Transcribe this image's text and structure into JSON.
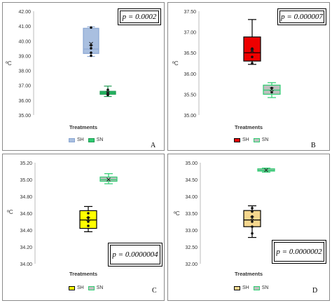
{
  "chart_data": [
    {
      "type": "box",
      "panel_letter": "A",
      "xlabel": "Treatments",
      "ylabel": "ºC",
      "ylim": [
        35.0,
        42.0
      ],
      "yticks": [
        "42.00",
        "41.00",
        "40.00",
        "39.00",
        "38.00",
        "37.00",
        "36.00",
        "35.00"
      ],
      "p_value": "p = 0.0002",
      "series": [
        {
          "name": "SH",
          "fill": "#a9bfe0",
          "stroke": "#8aa6d2",
          "min": 38.95,
          "q1": 39.15,
          "median": 39.45,
          "q3": 40.85,
          "max": 40.95,
          "mean": 39.8,
          "points": [
            39.0,
            39.2,
            39.5,
            39.7,
            40.9
          ]
        },
        {
          "name": "SN",
          "fill": "#2ecc71",
          "stroke": "#1f9a52",
          "min": 36.25,
          "q1": 36.4,
          "median": 36.5,
          "q3": 36.6,
          "max": 36.95,
          "mean": 36.5,
          "points": [
            36.35,
            36.5,
            36.7
          ]
        }
      ]
    },
    {
      "type": "box",
      "panel_letter": "B",
      "xlabel": "Treatments",
      "ylabel": "ºC",
      "ylim": [
        35.0,
        37.5
      ],
      "yticks": [
        "37.50",
        "37.00",
        "36.50",
        "36.00",
        "35.50",
        "35.00"
      ],
      "p_value": "p = 0.000007",
      "series": [
        {
          "name": "SH",
          "fill": "#ee0000",
          "stroke": "#000000",
          "min": 36.22,
          "q1": 36.3,
          "median": 36.5,
          "q3": 36.88,
          "max": 37.3,
          "mean": 36.55,
          "points": [
            36.25,
            36.4,
            36.55,
            36.6
          ]
        },
        {
          "name": "SN",
          "fill": "#bfbfbf",
          "stroke": "#2ecc71",
          "min": 35.42,
          "q1": 35.5,
          "median": 35.6,
          "q3": 35.72,
          "max": 35.78,
          "mean": 35.62,
          "points": [
            35.55,
            35.65
          ]
        }
      ]
    },
    {
      "type": "box",
      "panel_letter": "C",
      "xlabel": "Treatments",
      "ylabel": "ºC",
      "ylim": [
        34.0,
        35.2
      ],
      "yticks": [
        "35.20",
        "35.00",
        "34.80",
        "34.60",
        "34.40",
        "34.20",
        "34.00"
      ],
      "p_value": "p = 0.0000004",
      "series": [
        {
          "name": "SH",
          "fill": "#ffff00",
          "stroke": "#000000",
          "min": 34.38,
          "q1": 34.42,
          "median": 34.52,
          "q3": 34.63,
          "max": 34.68,
          "mean": 34.53,
          "points": [
            34.45,
            34.5,
            34.55,
            34.6
          ]
        },
        {
          "name": "SN",
          "fill": "#bfbfbf",
          "stroke": "#2ecc71",
          "min": 34.95,
          "q1": 34.98,
          "median": 35.0,
          "q3": 35.03,
          "max": 35.07,
          "mean": 35.0,
          "points": []
        }
      ]
    },
    {
      "type": "box",
      "panel_letter": "D",
      "xlabel": "Treatments",
      "ylabel": "ºC",
      "ylim": [
        32.0,
        35.0
      ],
      "yticks": [
        "35.00",
        "34.50",
        "34.00",
        "33.50",
        "33.00",
        "32.50",
        "32.00"
      ],
      "p_value": "p = 0.0000002",
      "series": [
        {
          "name": "SH",
          "fill": "#f5d78e",
          "stroke": "#000000",
          "min": 32.78,
          "q1": 33.1,
          "median": 33.3,
          "q3": 33.58,
          "max": 33.72,
          "mean": 33.35,
          "points": [
            32.9,
            33.1,
            33.25,
            33.4,
            33.55,
            33.65
          ]
        },
        {
          "name": "SN",
          "fill": "#bfbfbf",
          "stroke": "#2ecc71",
          "min": 34.72,
          "q1": 34.75,
          "median": 34.78,
          "q3": 34.82,
          "max": 34.84,
          "mean": 34.78,
          "points": []
        }
      ]
    }
  ]
}
